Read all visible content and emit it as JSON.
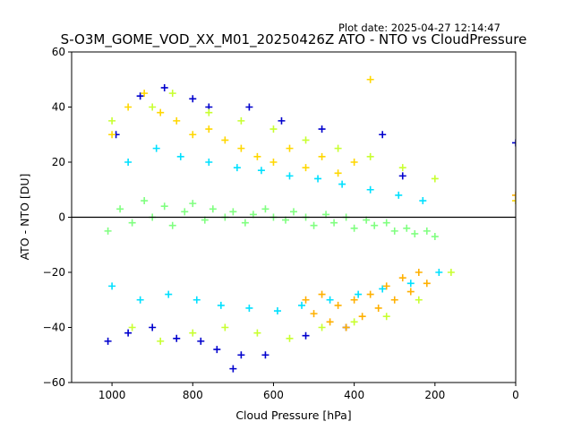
{
  "chart_data": {
    "type": "scatter",
    "plot_date": "Plot date: 2025-04-27 12:14:47",
    "title": "S-O3M_GOME_VOD_XX_M01_20250426Z ATO - NTO vs CloudPressure",
    "xlabel": "Cloud Pressure [hPa]",
    "ylabel": "ATO - NTO [DU]",
    "xlim": [
      1100,
      0
    ],
    "ylim": [
      -60,
      60
    ],
    "x_ticks": [
      1000,
      800,
      600,
      400,
      200,
      0
    ],
    "y_ticks": [
      60,
      40,
      20,
      0,
      -20,
      -40,
      -60
    ],
    "marker": "+",
    "reference_line_y": 0,
    "grid": false,
    "colors": {
      "dark_blue": "#0000cd",
      "blue": "#0080ff",
      "cyan": "#00e0ff",
      "green": "#80ff80",
      "yellow_green": "#c8ff30",
      "yellow": "#ffd700",
      "orange": "#ffb000"
    },
    "series": [
      {
        "color": "#80ff80",
        "x": [
          1010,
          980,
          950,
          920,
          900,
          870,
          850,
          820,
          800,
          770,
          750,
          720,
          700,
          670,
          650,
          620,
          600,
          570,
          550,
          520,
          500,
          470,
          450,
          420,
          400,
          370,
          350,
          320,
          300,
          270,
          250,
          220,
          200
        ],
        "y": [
          -5,
          3,
          -2,
          6,
          0,
          4,
          -3,
          2,
          5,
          -1,
          3,
          0,
          2,
          -2,
          1,
          3,
          0,
          -1,
          2,
          0,
          -3,
          1,
          -2,
          0,
          -4,
          -1,
          -3,
          -2,
          -5,
          -4,
          -6,
          -5,
          -7
        ]
      },
      {
        "color": "#00e0ff",
        "x": [
          1000,
          960,
          930,
          890,
          860,
          830,
          790,
          760,
          730,
          690,
          660,
          630,
          590,
          560,
          530,
          490,
          460,
          430,
          390,
          360,
          330,
          290,
          260,
          230,
          190
        ],
        "y": [
          -25,
          20,
          -30,
          25,
          -28,
          22,
          -30,
          20,
          -32,
          18,
          -33,
          17,
          -34,
          15,
          -32,
          14,
          -30,
          12,
          -28,
          10,
          -26,
          8,
          -24,
          6,
          -20
        ]
      },
      {
        "color": "#0000cd",
        "x": [
          1010,
          990,
          960,
          930,
          900,
          870,
          840,
          800,
          780,
          760,
          740,
          700,
          680,
          660,
          620,
          580,
          520,
          480,
          420,
          330,
          280,
          0
        ],
        "y": [
          -45,
          30,
          -42,
          44,
          -40,
          47,
          -44,
          43,
          -45,
          40,
          -48,
          -55,
          -50,
          40,
          -50,
          35,
          -43,
          32,
          -40,
          30,
          15,
          27
        ]
      },
      {
        "color": "#ffb000",
        "x": [
          520,
          500,
          480,
          460,
          440,
          420,
          400,
          380,
          360,
          340,
          320,
          300,
          280,
          260,
          240,
          220,
          0
        ],
        "y": [
          -30,
          -35,
          -28,
          -38,
          -32,
          -40,
          -30,
          -36,
          -28,
          -33,
          -25,
          -30,
          -22,
          -27,
          -20,
          -24,
          8
        ]
      },
      {
        "color": "#c8ff30",
        "x": [
          1000,
          950,
          900,
          880,
          850,
          800,
          760,
          720,
          680,
          640,
          600,
          560,
          520,
          480,
          440,
          400,
          360,
          320,
          280,
          240,
          200,
          160
        ],
        "y": [
          35,
          -40,
          40,
          -45,
          45,
          -42,
          38,
          -40,
          35,
          -42,
          32,
          -44,
          28,
          -40,
          25,
          -38,
          22,
          -36,
          18,
          -30,
          14,
          -20
        ]
      },
      {
        "color": "#ffd700",
        "x": [
          1000,
          960,
          920,
          880,
          840,
          800,
          760,
          720,
          680,
          640,
          600,
          560,
          520,
          480,
          440,
          400,
          360,
          0
        ],
        "y": [
          30,
          40,
          45,
          38,
          35,
          30,
          32,
          28,
          25,
          22,
          20,
          25,
          18,
          22,
          16,
          20,
          50,
          6
        ]
      }
    ]
  }
}
